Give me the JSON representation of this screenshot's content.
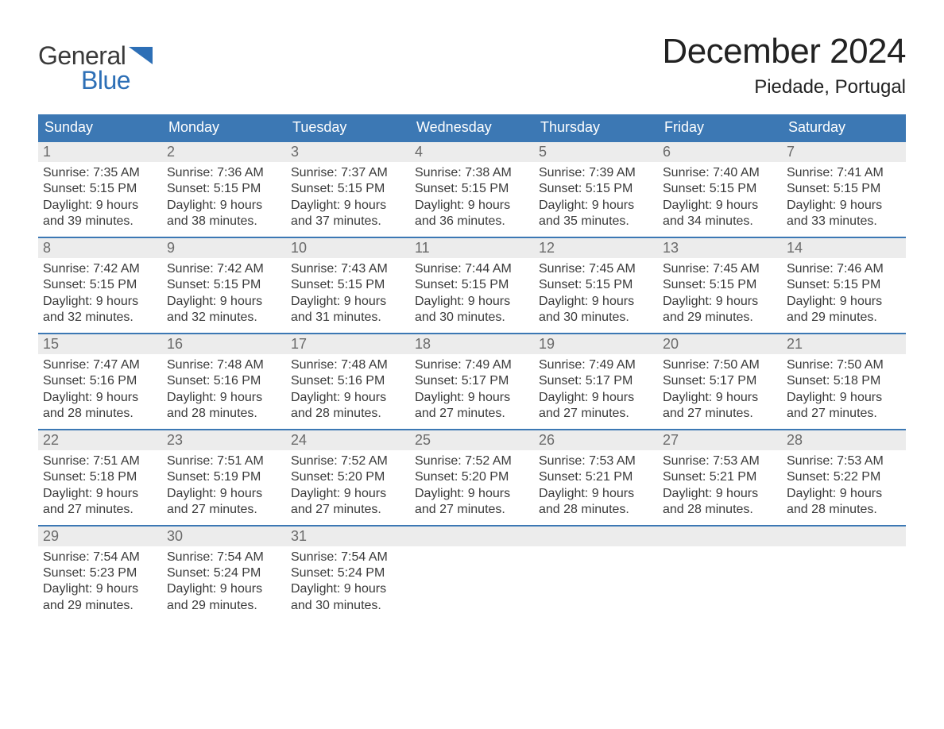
{
  "colors": {
    "header_bg": "#3c78b4",
    "header_fg": "#ffffff",
    "daynum_bg": "#ececec",
    "daynum_fg": "#6a6a6a",
    "body_text": "#3a3a3a",
    "week_border": "#3c78b4",
    "logo_blue": "#2d6fb6",
    "page_bg": "#ffffff"
  },
  "logo": {
    "word1": "General",
    "word2": "Blue"
  },
  "title": "December 2024",
  "location": "Piedade, Portugal",
  "day_names": [
    "Sunday",
    "Monday",
    "Tuesday",
    "Wednesday",
    "Thursday",
    "Friday",
    "Saturday"
  ],
  "weeks": [
    [
      {
        "n": "1",
        "sunrise": "Sunrise: 7:35 AM",
        "sunset": "Sunset: 5:15 PM",
        "d1": "Daylight: 9 hours",
        "d2": "and 39 minutes."
      },
      {
        "n": "2",
        "sunrise": "Sunrise: 7:36 AM",
        "sunset": "Sunset: 5:15 PM",
        "d1": "Daylight: 9 hours",
        "d2": "and 38 minutes."
      },
      {
        "n": "3",
        "sunrise": "Sunrise: 7:37 AM",
        "sunset": "Sunset: 5:15 PM",
        "d1": "Daylight: 9 hours",
        "d2": "and 37 minutes."
      },
      {
        "n": "4",
        "sunrise": "Sunrise: 7:38 AM",
        "sunset": "Sunset: 5:15 PM",
        "d1": "Daylight: 9 hours",
        "d2": "and 36 minutes."
      },
      {
        "n": "5",
        "sunrise": "Sunrise: 7:39 AM",
        "sunset": "Sunset: 5:15 PM",
        "d1": "Daylight: 9 hours",
        "d2": "and 35 minutes."
      },
      {
        "n": "6",
        "sunrise": "Sunrise: 7:40 AM",
        "sunset": "Sunset: 5:15 PM",
        "d1": "Daylight: 9 hours",
        "d2": "and 34 minutes."
      },
      {
        "n": "7",
        "sunrise": "Sunrise: 7:41 AM",
        "sunset": "Sunset: 5:15 PM",
        "d1": "Daylight: 9 hours",
        "d2": "and 33 minutes."
      }
    ],
    [
      {
        "n": "8",
        "sunrise": "Sunrise: 7:42 AM",
        "sunset": "Sunset: 5:15 PM",
        "d1": "Daylight: 9 hours",
        "d2": "and 32 minutes."
      },
      {
        "n": "9",
        "sunrise": "Sunrise: 7:42 AM",
        "sunset": "Sunset: 5:15 PM",
        "d1": "Daylight: 9 hours",
        "d2": "and 32 minutes."
      },
      {
        "n": "10",
        "sunrise": "Sunrise: 7:43 AM",
        "sunset": "Sunset: 5:15 PM",
        "d1": "Daylight: 9 hours",
        "d2": "and 31 minutes."
      },
      {
        "n": "11",
        "sunrise": "Sunrise: 7:44 AM",
        "sunset": "Sunset: 5:15 PM",
        "d1": "Daylight: 9 hours",
        "d2": "and 30 minutes."
      },
      {
        "n": "12",
        "sunrise": "Sunrise: 7:45 AM",
        "sunset": "Sunset: 5:15 PM",
        "d1": "Daylight: 9 hours",
        "d2": "and 30 minutes."
      },
      {
        "n": "13",
        "sunrise": "Sunrise: 7:45 AM",
        "sunset": "Sunset: 5:15 PM",
        "d1": "Daylight: 9 hours",
        "d2": "and 29 minutes."
      },
      {
        "n": "14",
        "sunrise": "Sunrise: 7:46 AM",
        "sunset": "Sunset: 5:15 PM",
        "d1": "Daylight: 9 hours",
        "d2": "and 29 minutes."
      }
    ],
    [
      {
        "n": "15",
        "sunrise": "Sunrise: 7:47 AM",
        "sunset": "Sunset: 5:16 PM",
        "d1": "Daylight: 9 hours",
        "d2": "and 28 minutes."
      },
      {
        "n": "16",
        "sunrise": "Sunrise: 7:48 AM",
        "sunset": "Sunset: 5:16 PM",
        "d1": "Daylight: 9 hours",
        "d2": "and 28 minutes."
      },
      {
        "n": "17",
        "sunrise": "Sunrise: 7:48 AM",
        "sunset": "Sunset: 5:16 PM",
        "d1": "Daylight: 9 hours",
        "d2": "and 28 minutes."
      },
      {
        "n": "18",
        "sunrise": "Sunrise: 7:49 AM",
        "sunset": "Sunset: 5:17 PM",
        "d1": "Daylight: 9 hours",
        "d2": "and 27 minutes."
      },
      {
        "n": "19",
        "sunrise": "Sunrise: 7:49 AM",
        "sunset": "Sunset: 5:17 PM",
        "d1": "Daylight: 9 hours",
        "d2": "and 27 minutes."
      },
      {
        "n": "20",
        "sunrise": "Sunrise: 7:50 AM",
        "sunset": "Sunset: 5:17 PM",
        "d1": "Daylight: 9 hours",
        "d2": "and 27 minutes."
      },
      {
        "n": "21",
        "sunrise": "Sunrise: 7:50 AM",
        "sunset": "Sunset: 5:18 PM",
        "d1": "Daylight: 9 hours",
        "d2": "and 27 minutes."
      }
    ],
    [
      {
        "n": "22",
        "sunrise": "Sunrise: 7:51 AM",
        "sunset": "Sunset: 5:18 PM",
        "d1": "Daylight: 9 hours",
        "d2": "and 27 minutes."
      },
      {
        "n": "23",
        "sunrise": "Sunrise: 7:51 AM",
        "sunset": "Sunset: 5:19 PM",
        "d1": "Daylight: 9 hours",
        "d2": "and 27 minutes."
      },
      {
        "n": "24",
        "sunrise": "Sunrise: 7:52 AM",
        "sunset": "Sunset: 5:20 PM",
        "d1": "Daylight: 9 hours",
        "d2": "and 27 minutes."
      },
      {
        "n": "25",
        "sunrise": "Sunrise: 7:52 AM",
        "sunset": "Sunset: 5:20 PM",
        "d1": "Daylight: 9 hours",
        "d2": "and 27 minutes."
      },
      {
        "n": "26",
        "sunrise": "Sunrise: 7:53 AM",
        "sunset": "Sunset: 5:21 PM",
        "d1": "Daylight: 9 hours",
        "d2": "and 28 minutes."
      },
      {
        "n": "27",
        "sunrise": "Sunrise: 7:53 AM",
        "sunset": "Sunset: 5:21 PM",
        "d1": "Daylight: 9 hours",
        "d2": "and 28 minutes."
      },
      {
        "n": "28",
        "sunrise": "Sunrise: 7:53 AM",
        "sunset": "Sunset: 5:22 PM",
        "d1": "Daylight: 9 hours",
        "d2": "and 28 minutes."
      }
    ],
    [
      {
        "n": "29",
        "sunrise": "Sunrise: 7:54 AM",
        "sunset": "Sunset: 5:23 PM",
        "d1": "Daylight: 9 hours",
        "d2": "and 29 minutes."
      },
      {
        "n": "30",
        "sunrise": "Sunrise: 7:54 AM",
        "sunset": "Sunset: 5:24 PM",
        "d1": "Daylight: 9 hours",
        "d2": "and 29 minutes."
      },
      {
        "n": "31",
        "sunrise": "Sunrise: 7:54 AM",
        "sunset": "Sunset: 5:24 PM",
        "d1": "Daylight: 9 hours",
        "d2": "and 30 minutes."
      },
      null,
      null,
      null,
      null
    ]
  ]
}
